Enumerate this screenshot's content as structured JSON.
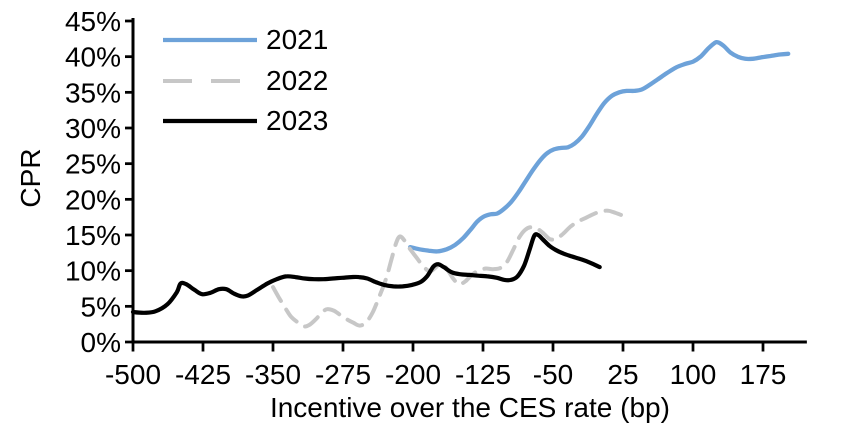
{
  "chart_data": {
    "type": "line",
    "title": "",
    "xlabel": "Incentive over the CES rate (bp)",
    "ylabel": "CPR",
    "xlim": [
      -500,
      222
    ],
    "ylim": [
      0,
      45
    ],
    "grid": false,
    "legend_position": "top-left-inside",
    "axis_color": "#000000",
    "x_ticks": [
      -500,
      -425,
      -350,
      -275,
      -200,
      -125,
      -50,
      25,
      100,
      175
    ],
    "x_tick_labels": [
      "-500",
      "-425",
      "-350",
      "-275",
      "-200",
      "-125",
      "-50",
      "25",
      "100",
      "175"
    ],
    "y_ticks": [
      0,
      5,
      10,
      15,
      20,
      25,
      30,
      35,
      40,
      45
    ],
    "y_tick_labels": [
      "0%",
      "5%",
      "10%",
      "15%",
      "20%",
      "25%",
      "30%",
      "35%",
      "40%",
      "45%"
    ],
    "series": [
      {
        "name": "2021",
        "color": "#6DA2D9",
        "style": "solid",
        "points": [
          [
            -203,
            13.3
          ],
          [
            -193,
            13.0
          ],
          [
            -183,
            12.8
          ],
          [
            -174,
            12.7
          ],
          [
            -164,
            13.0
          ],
          [
            -155,
            13.6
          ],
          [
            -146,
            14.6
          ],
          [
            -138,
            15.8
          ],
          [
            -131,
            16.9
          ],
          [
            -124,
            17.6
          ],
          [
            -117,
            17.9
          ],
          [
            -110,
            18.0
          ],
          [
            -103,
            18.6
          ],
          [
            -95,
            19.6
          ],
          [
            -87,
            21.0
          ],
          [
            -79,
            22.6
          ],
          [
            -71,
            24.2
          ],
          [
            -63,
            25.6
          ],
          [
            -56,
            26.5
          ],
          [
            -49,
            27.0
          ],
          [
            -42,
            27.2
          ],
          [
            -34,
            27.3
          ],
          [
            -27,
            27.8
          ],
          [
            -19,
            28.8
          ],
          [
            -11,
            30.3
          ],
          [
            -3,
            32.0
          ],
          [
            5,
            33.5
          ],
          [
            13,
            34.5
          ],
          [
            21,
            35.0
          ],
          [
            29,
            35.2
          ],
          [
            37,
            35.2
          ],
          [
            45,
            35.4
          ],
          [
            53,
            36.0
          ],
          [
            62,
            36.8
          ],
          [
            72,
            37.7
          ],
          [
            82,
            38.5
          ],
          [
            92,
            39.0
          ],
          [
            100,
            39.3
          ],
          [
            108,
            40.0
          ],
          [
            116,
            41.1
          ],
          [
            123,
            41.9
          ],
          [
            127,
            42.0
          ],
          [
            133,
            41.5
          ],
          [
            140,
            40.6
          ],
          [
            148,
            40.0
          ],
          [
            156,
            39.7
          ],
          [
            164,
            39.7
          ],
          [
            173,
            39.9
          ],
          [
            183,
            40.1
          ],
          [
            193,
            40.3
          ],
          [
            202,
            40.4
          ]
        ]
      },
      {
        "name": "2022",
        "color": "#C7C7C7",
        "style": "dashed",
        "points": [
          [
            -350,
            7.7
          ],
          [
            -344,
            6.3
          ],
          [
            -337,
            4.8
          ],
          [
            -331,
            3.6
          ],
          [
            -324,
            2.8
          ],
          [
            -317,
            2.2
          ],
          [
            -311,
            2.4
          ],
          [
            -304,
            3.2
          ],
          [
            -298,
            4.1
          ],
          [
            -292,
            4.6
          ],
          [
            -285,
            4.4
          ],
          [
            -278,
            3.8
          ],
          [
            -271,
            3.2
          ],
          [
            -264,
            2.7
          ],
          [
            -257,
            2.3
          ],
          [
            -250,
            2.8
          ],
          [
            -243,
            4.2
          ],
          [
            -236,
            6.4
          ],
          [
            -229,
            8.8
          ],
          [
            -223,
            11.6
          ],
          [
            -218,
            13.9
          ],
          [
            -214,
            14.8
          ],
          [
            -209,
            14.2
          ],
          [
            -203,
            13.0
          ],
          [
            -196,
            11.8
          ],
          [
            -189,
            10.6
          ],
          [
            -182,
            9.9
          ],
          [
            -176,
            10.4
          ],
          [
            -170,
            11.1
          ],
          [
            -164,
            10.3
          ],
          [
            -157,
            8.9
          ],
          [
            -151,
            8.1
          ],
          [
            -144,
            8.5
          ],
          [
            -137,
            9.4
          ],
          [
            -130,
            10.0
          ],
          [
            -122,
            10.3
          ],
          [
            -114,
            10.2
          ],
          [
            -106,
            10.4
          ],
          [
            -99,
            11.3
          ],
          [
            -92,
            13.1
          ],
          [
            -86,
            14.7
          ],
          [
            -80,
            15.7
          ],
          [
            -74,
            16.1
          ],
          [
            -67,
            15.9
          ],
          [
            -60,
            15.2
          ],
          [
            -53,
            14.4
          ],
          [
            -46,
            14.5
          ],
          [
            -39,
            15.2
          ],
          [
            -31,
            16.2
          ],
          [
            -23,
            16.9
          ],
          [
            -15,
            17.4
          ],
          [
            -7,
            17.9
          ],
          [
            1,
            18.3
          ],
          [
            9,
            18.4
          ],
          [
            17,
            18.1
          ],
          [
            25,
            17.7
          ]
        ]
      },
      {
        "name": "2023",
        "color": "#000000",
        "style": "solid",
        "points": [
          [
            -500,
            4.2
          ],
          [
            -488,
            4.1
          ],
          [
            -476,
            4.3
          ],
          [
            -463,
            5.3
          ],
          [
            -453,
            7.0
          ],
          [
            -449,
            8.2
          ],
          [
            -443,
            8.1
          ],
          [
            -434,
            7.3
          ],
          [
            -426,
            6.7
          ],
          [
            -417,
            6.9
          ],
          [
            -408,
            7.4
          ],
          [
            -400,
            7.4
          ],
          [
            -392,
            6.8
          ],
          [
            -384,
            6.4
          ],
          [
            -377,
            6.5
          ],
          [
            -367,
            7.3
          ],
          [
            -356,
            8.2
          ],
          [
            -346,
            8.8
          ],
          [
            -336,
            9.2
          ],
          [
            -326,
            9.1
          ],
          [
            -316,
            8.9
          ],
          [
            -306,
            8.8
          ],
          [
            -296,
            8.8
          ],
          [
            -286,
            8.9
          ],
          [
            -276,
            9.0
          ],
          [
            -266,
            9.1
          ],
          [
            -258,
            9.1
          ],
          [
            -249,
            8.9
          ],
          [
            -240,
            8.4
          ],
          [
            -231,
            8.0
          ],
          [
            -221,
            7.8
          ],
          [
            -211,
            7.8
          ],
          [
            -201,
            8.0
          ],
          [
            -192,
            8.4
          ],
          [
            -185,
            9.2
          ],
          [
            -178,
            10.6
          ],
          [
            -173,
            10.9
          ],
          [
            -167,
            10.5
          ],
          [
            -159,
            9.8
          ],
          [
            -150,
            9.5
          ],
          [
            -140,
            9.4
          ],
          [
            -130,
            9.3
          ],
          [
            -120,
            9.2
          ],
          [
            -110,
            9.0
          ],
          [
            -102,
            8.7
          ],
          [
            -95,
            8.7
          ],
          [
            -88,
            9.2
          ],
          [
            -81,
            10.7
          ],
          [
            -75,
            13.0
          ],
          [
            -70,
            14.9
          ],
          [
            -66,
            15.0
          ],
          [
            -61,
            14.4
          ],
          [
            -54,
            13.5
          ],
          [
            -47,
            12.9
          ],
          [
            -39,
            12.4
          ],
          [
            -30,
            12.0
          ],
          [
            -20,
            11.6
          ],
          [
            -10,
            11.1
          ],
          [
            0,
            10.5
          ]
        ]
      }
    ]
  }
}
